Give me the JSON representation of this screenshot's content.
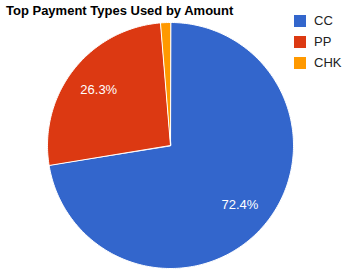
{
  "chart_data": {
    "type": "pie",
    "title": "Top Payment Types Used by Amount",
    "categories": [
      "CC",
      "PP",
      "CHK"
    ],
    "values": [
      72.4,
      26.3,
      1.3
    ],
    "colors": [
      "#3366cc",
      "#dc3912",
      "#ff9900"
    ],
    "data_labels": true,
    "value_labels": [
      "72.4%",
      "26.3%",
      null
    ],
    "legend": "top-right"
  }
}
